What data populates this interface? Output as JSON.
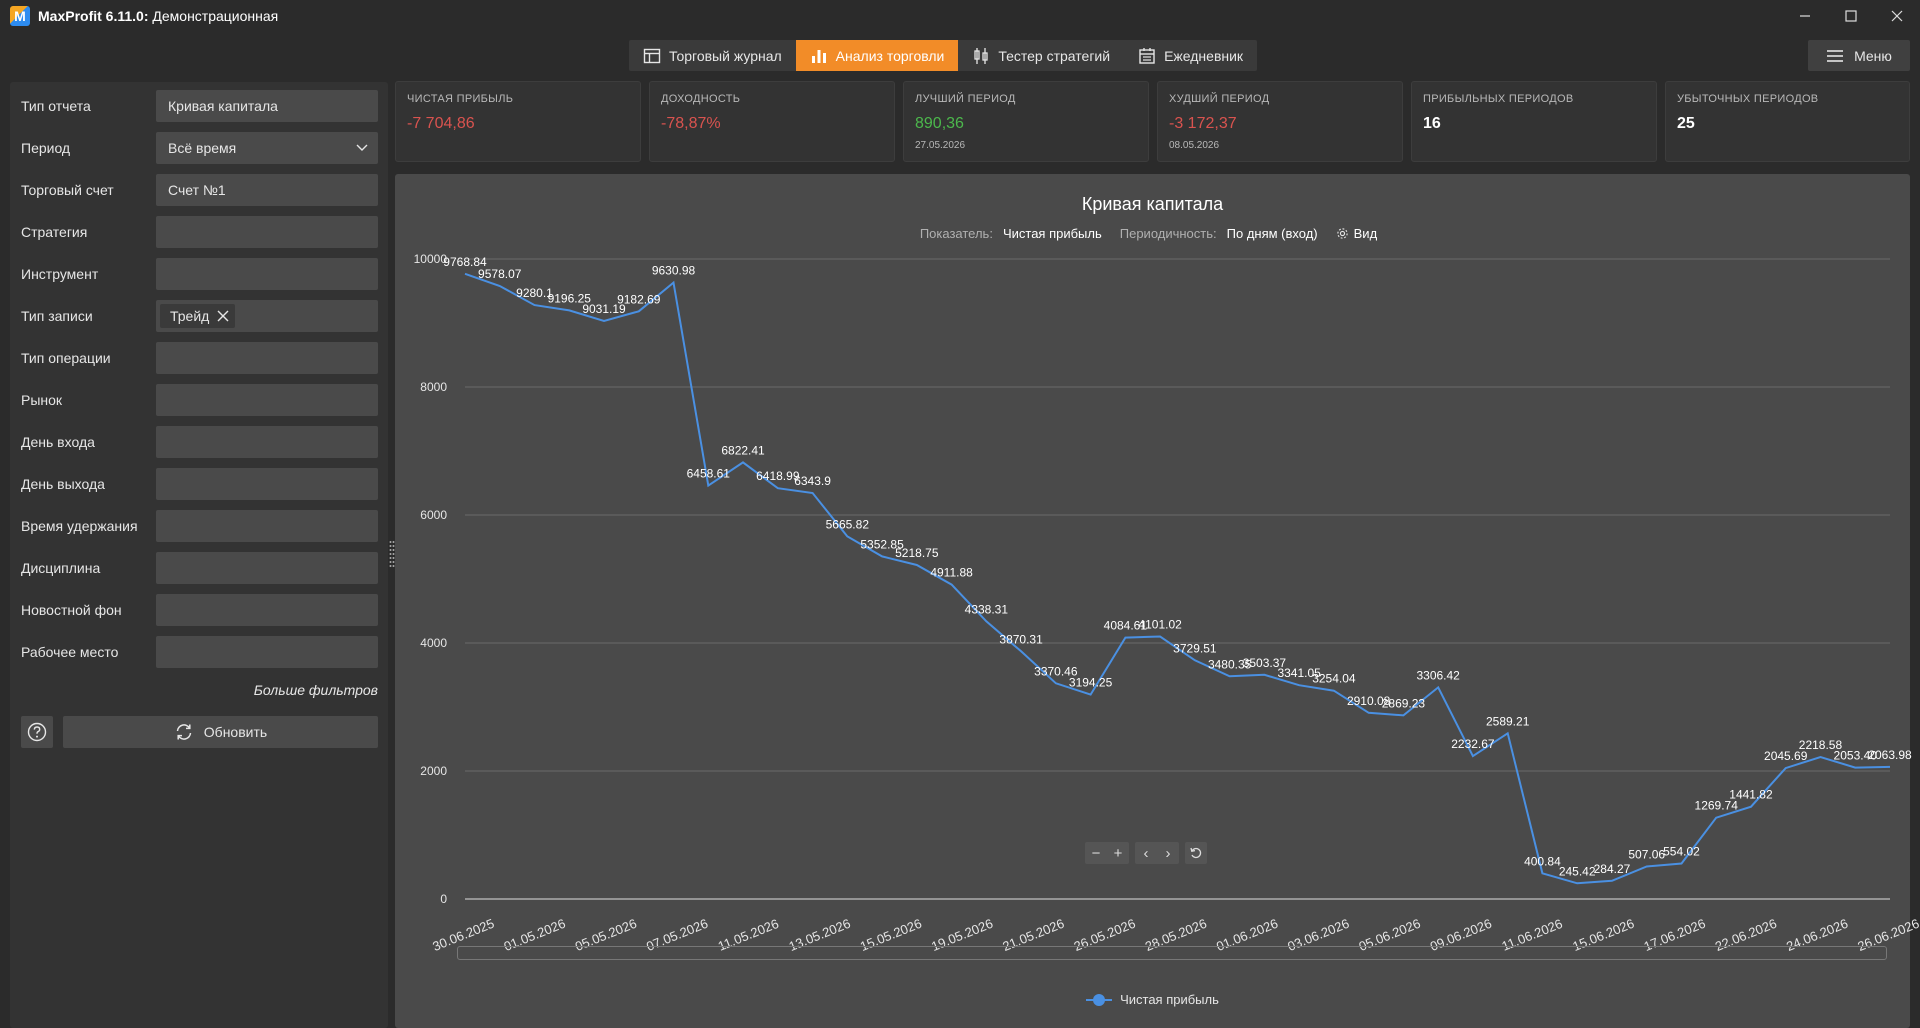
{
  "titlebar": {
    "app_name": "MaxProfit 6.11.0:",
    "subtitle": "Демонстрационная"
  },
  "toolbar": {
    "tabs": [
      {
        "label": "Торговый журнал",
        "icon": "table-icon",
        "active": false
      },
      {
        "label": "Анализ торговли",
        "icon": "bar-chart-icon",
        "active": true
      },
      {
        "label": "Тестер стратегий",
        "icon": "candles-icon",
        "active": false
      },
      {
        "label": "Ежедневник",
        "icon": "calendar-icon",
        "active": false
      }
    ],
    "menu_label": "Меню"
  },
  "filters": {
    "rows": [
      {
        "label": "Тип отчета",
        "value": "Кривая капитала",
        "kind": "text"
      },
      {
        "label": "Период",
        "value": "Всё время",
        "kind": "select"
      },
      {
        "label": "Торговый счет",
        "value": "Счет №1",
        "kind": "text"
      },
      {
        "label": "Стратегия",
        "value": "",
        "kind": "text"
      },
      {
        "label": "Инструмент",
        "value": "",
        "kind": "text"
      },
      {
        "label": "Тип записи",
        "value": "Трейд",
        "kind": "chip"
      },
      {
        "label": "Тип операции",
        "value": "",
        "kind": "text"
      },
      {
        "label": "Рынок",
        "value": "",
        "kind": "text"
      },
      {
        "label": "День входа",
        "value": "",
        "kind": "text"
      },
      {
        "label": "День выхода",
        "value": "",
        "kind": "text"
      },
      {
        "label": "Время удержания",
        "value": "",
        "kind": "text"
      },
      {
        "label": "Дисциплина",
        "value": "",
        "kind": "text"
      },
      {
        "label": "Новостной фон",
        "value": "",
        "kind": "text"
      },
      {
        "label": "Рабочее место",
        "value": "",
        "kind": "text"
      }
    ],
    "more_filters": "Больше фильтров",
    "refresh_label": "Обновить"
  },
  "stats": [
    {
      "label": "ЧИСТАЯ ПРИБЫЛЬ",
      "value": "-7 704,86",
      "tone": "neg",
      "date": ""
    },
    {
      "label": "ДОХОДНОСТЬ",
      "value": "-78,87%",
      "tone": "neg",
      "date": ""
    },
    {
      "label": "ЛУЧШИЙ ПЕРИОД",
      "value": "890,36",
      "tone": "pos",
      "date": "27.05.2026"
    },
    {
      "label": "ХУДШИЙ ПЕРИОД",
      "value": "-3 172,37",
      "tone": "neg",
      "date": "08.05.2026"
    },
    {
      "label": "ПРИБЫЛЬНЫХ ПЕРИОДОВ",
      "value": "16",
      "tone": "neu",
      "date": ""
    },
    {
      "label": "УБЫТОЧНЫХ ПЕРИОДОВ",
      "value": "25",
      "tone": "neu",
      "date": ""
    }
  ],
  "chart_options": {
    "indicator_label": "Показатель:",
    "indicator_value": "Чистая прибыль",
    "period_label": "Периодичность:",
    "period_value": "По дням (вход)",
    "view_label": "Вид"
  },
  "colors": {
    "accent": "#f28c28",
    "line": "#4a90e2",
    "negative": "#d9534f",
    "positive": "#4cb84c"
  },
  "chart_data": {
    "type": "line",
    "title": "Кривая капитала",
    "ylim": [
      0,
      10000
    ],
    "yticks": [
      0,
      2000,
      4000,
      6000,
      8000,
      10000
    ],
    "grid": true,
    "legend": "bottom",
    "x_tick_labels": [
      "30.06.2025",
      "01.05.2026",
      "05.05.2026",
      "07.05.2026",
      "11.05.2026",
      "13.05.2026",
      "15.05.2026",
      "19.05.2026",
      "21.05.2026",
      "26.05.2026",
      "28.05.2026",
      "01.06.2026",
      "03.06.2026",
      "05.06.2026",
      "09.06.2026",
      "11.06.2026",
      "15.06.2026",
      "17.06.2026",
      "22.06.2026",
      "24.06.2026",
      "26.06.2026"
    ],
    "series": [
      {
        "name": "Чистая прибыль",
        "values": [
          9768.84,
          9578.07,
          9280.1,
          9196.25,
          9031.19,
          9182.69,
          9630.98,
          6458.61,
          6822.41,
          6418.99,
          6343.9,
          5665.82,
          5352.85,
          5218.75,
          4911.88,
          4338.31,
          3870.31,
          3370.46,
          3194.25,
          4084.61,
          4101.02,
          3729.51,
          3480.35,
          3503.37,
          3341.05,
          3254.04,
          2910.08,
          2869.23,
          3306.42,
          2232.67,
          2589.21,
          400.84,
          245.42,
          284.27,
          507.06,
          554.02,
          1269.74,
          1441.82,
          2045.69,
          2218.58,
          2053.4,
          2063.98
        ],
        "labels": [
          "9768.84",
          "9578.07",
          "9280.1",
          "9196.25",
          "9031.19",
          "9182.69",
          "9630.98",
          "6458.61",
          "6822.41",
          "6418.99",
          "6343.9",
          "5665.82",
          "5352.85",
          "5218.75",
          "4911.88",
          "4338.31",
          "3870.31",
          "3370.46",
          "3194.25",
          "4084.61",
          "4101.02",
          "3729.51",
          "3480.35",
          "3503.37",
          "3341.05",
          "3254.04",
          "2910.08",
          "2869.23",
          "3306.42",
          "2232.67",
          "2589.21",
          "400.84",
          "245.42",
          "284.27",
          "507.06",
          "554.02",
          "1269.74",
          "1441.82",
          "2045.69",
          "2218.58",
          "2053.40",
          "2063.98"
        ]
      }
    ]
  }
}
